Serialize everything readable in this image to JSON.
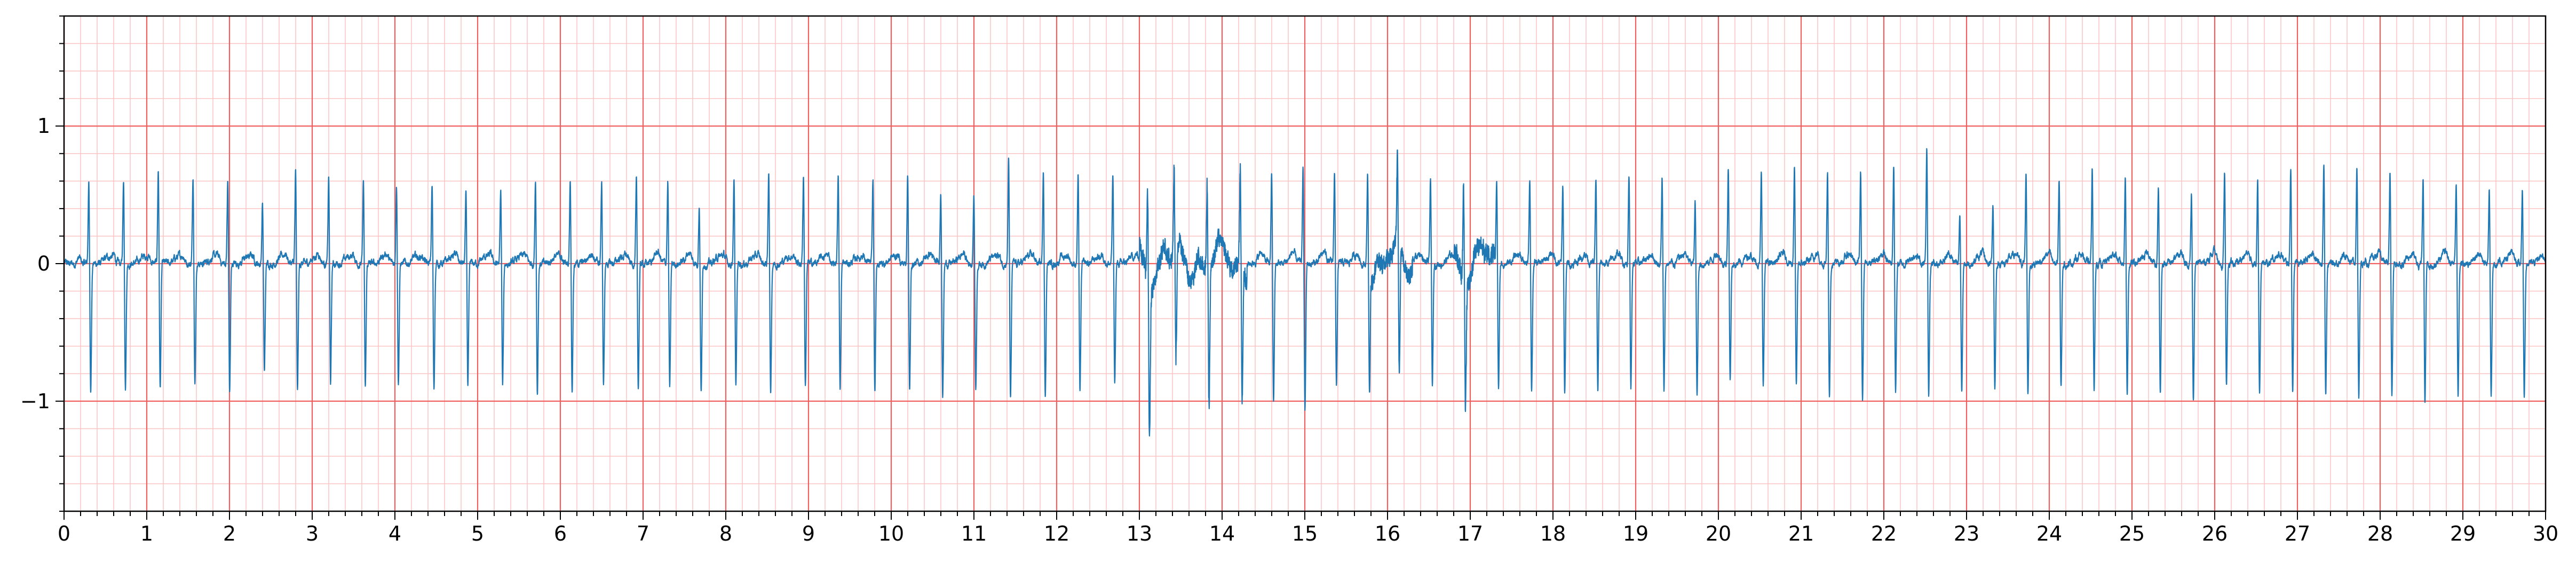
{
  "chart_data": {
    "type": "line",
    "title": "",
    "xlabel": "",
    "ylabel": "",
    "xlim": [
      0,
      30
    ],
    "ylim": [
      -1.8,
      1.8
    ],
    "x_ticks": [
      0,
      1,
      2,
      3,
      4,
      5,
      6,
      7,
      8,
      9,
      10,
      11,
      12,
      13,
      14,
      15,
      16,
      17,
      18,
      19,
      20,
      21,
      22,
      23,
      24,
      25,
      26,
      27,
      28,
      29,
      30
    ],
    "x_tick_labels": [
      "0",
      "1",
      "2",
      "3",
      "4",
      "5",
      "6",
      "7",
      "8",
      "9",
      "10",
      "11",
      "12",
      "13",
      "14",
      "15",
      "16",
      "17",
      "18",
      "19",
      "20",
      "21",
      "22",
      "23",
      "24",
      "25",
      "26",
      "27",
      "28",
      "29",
      "30"
    ],
    "y_ticks": [
      -1,
      0,
      1
    ],
    "y_tick_labels": [
      "−1",
      "0",
      "1"
    ],
    "grid": {
      "major": true,
      "minor": true,
      "major_x_step": 1,
      "minor_x_step": 0.2,
      "major_y_step": 1,
      "minor_y_step": 0.2
    },
    "colors": {
      "major_grid": "#f06060",
      "minor_grid": "#fbc4c4",
      "line": "#1f77b4",
      "axes": "#000000"
    },
    "series": [
      {
        "name": "",
        "beat_times": [
          0.3,
          0.72,
          1.14,
          1.56,
          1.98,
          2.4,
          2.8,
          3.2,
          3.62,
          4.02,
          4.45,
          4.86,
          5.28,
          5.7,
          6.12,
          6.5,
          6.92,
          7.3,
          7.68,
          8.1,
          8.52,
          8.94,
          9.36,
          9.78,
          10.2,
          10.6,
          11.0,
          11.42,
          11.84,
          12.26,
          12.68,
          13.1,
          13.42,
          13.82,
          14.22,
          14.6,
          14.98,
          15.36,
          15.76,
          16.12,
          16.52,
          16.92,
          17.32,
          17.72,
          18.12,
          18.52,
          18.92,
          19.32,
          19.72,
          20.12,
          20.52,
          20.92,
          21.32,
          21.72,
          22.12,
          22.52,
          22.92,
          23.32,
          23.72,
          24.12,
          24.52,
          24.92,
          25.32,
          25.72,
          26.12,
          26.52,
          26.92,
          27.32,
          27.72,
          28.12,
          28.52,
          28.92,
          29.32,
          29.72
        ],
        "r_peaks": [
          0.62,
          0.65,
          0.72,
          0.68,
          0.63,
          0.48,
          0.7,
          0.66,
          0.64,
          0.63,
          0.6,
          0.55,
          0.56,
          0.66,
          0.66,
          0.62,
          0.63,
          0.63,
          0.46,
          0.63,
          0.72,
          0.68,
          0.7,
          0.65,
          0.7,
          0.58,
          0.53,
          0.8,
          0.73,
          0.68,
          0.68,
          0.7,
          0.65,
          0.7,
          0.75,
          0.7,
          0.73,
          0.72,
          0.7,
          0.68,
          0.65,
          0.75,
          0.63,
          0.65,
          0.6,
          0.65,
          0.68,
          0.65,
          0.48,
          0.73,
          0.68,
          0.75,
          0.7,
          0.73,
          0.77,
          0.86,
          0.42,
          0.48,
          0.7,
          0.63,
          0.73,
          0.68,
          0.6,
          0.53,
          0.72,
          0.68,
          0.73,
          0.77,
          0.73,
          0.7,
          0.68,
          0.63,
          0.6,
          0.58
        ],
        "s_troughs": [
          -0.92,
          -0.9,
          -0.92,
          -0.88,
          -0.95,
          -0.8,
          -0.95,
          -0.88,
          -0.92,
          -0.88,
          -0.92,
          -0.92,
          -0.9,
          -0.95,
          -0.92,
          -0.9,
          -0.92,
          -0.92,
          -0.95,
          -0.9,
          -0.95,
          -0.9,
          -0.92,
          -0.95,
          -0.95,
          -0.97,
          -0.92,
          -1.02,
          -0.98,
          -0.95,
          -0.88,
          -1.1,
          -0.8,
          -0.98,
          -1.0,
          -1.03,
          -1.08,
          -0.9,
          -0.95,
          -0.98,
          -0.9,
          -0.88,
          -0.92,
          -0.92,
          -0.95,
          -0.95,
          -0.9,
          -0.95,
          -0.98,
          -0.85,
          -0.9,
          -0.92,
          -0.95,
          -1.0,
          -0.95,
          -0.98,
          -0.95,
          -0.92,
          -0.95,
          -0.92,
          -0.92,
          -0.95,
          -0.97,
          -1.0,
          -0.92,
          -0.95,
          -0.92,
          -0.95,
          -0.98,
          -0.97,
          -1.0,
          -0.98,
          -0.95,
          -0.97
        ],
        "noisy_segments": [
          [
            13.0,
            14.3
          ],
          [
            15.8,
            16.3
          ],
          [
            16.8,
            17.3
          ]
        ]
      }
    ]
  }
}
